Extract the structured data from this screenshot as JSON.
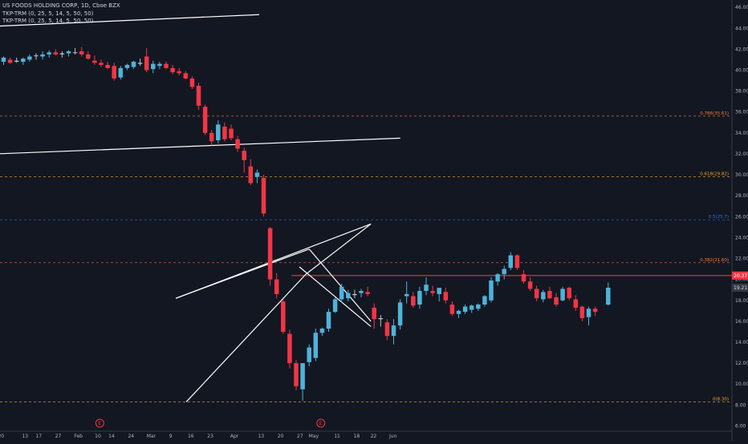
{
  "header": {
    "title": "US FOODS HOLDING CORP, 1D, Cboe BZX",
    "indicators": [
      "TKP-TRM (0, 25, 5, 14, 5, 50, 50)",
      "TKP-TRM (0, 25, 5, 14, 5, 50, 50)"
    ]
  },
  "colors": {
    "background": "#131722",
    "up": "#4fb3d9",
    "down": "#f23645",
    "neutral": "#c0c0c6",
    "trendline": "#ffffff",
    "resistance": "#f23645"
  },
  "chart_data": {
    "type": "candlestick",
    "ylim": [
      5.5,
      46.7
    ],
    "y_ticks": [
      6,
      8,
      10,
      12,
      14,
      16,
      18,
      20,
      22,
      24,
      26,
      28,
      30,
      32,
      34,
      36,
      38,
      40,
      42,
      44,
      46
    ],
    "x_labels": [
      {
        "label": "20",
        "bar": -0.4
      },
      {
        "label": "13",
        "bar": 3.3
      },
      {
        "label": "17",
        "bar": 5.4
      },
      {
        "label": "27",
        "bar": 8.4
      },
      {
        "label": "Feb",
        "bar": 11.5
      },
      {
        "label": "10",
        "bar": 14.5
      },
      {
        "label": "14",
        "bar": 16.6
      },
      {
        "label": "24",
        "bar": 19.6
      },
      {
        "label": "Mar",
        "bar": 22.7
      },
      {
        "label": "9",
        "bar": 25.7
      },
      {
        "label": "16",
        "bar": 28.8
      },
      {
        "label": "23",
        "bar": 31.8
      },
      {
        "label": "Apr",
        "bar": 35.5
      },
      {
        "label": "13",
        "bar": 39.6
      },
      {
        "label": "20",
        "bar": 42.6
      },
      {
        "label": "27",
        "bar": 45.6
      },
      {
        "label": "May",
        "bar": 47.7
      },
      {
        "label": "11",
        "bar": 51.3
      },
      {
        "label": "18",
        "bar": 54.3
      },
      {
        "label": "22",
        "bar": 56.9
      },
      {
        "label": "Jun",
        "bar": 59.9
      }
    ],
    "candles": [
      {
        "o": 40.8,
        "h": 41.3,
        "l": 40.5,
        "c": 41.2
      },
      {
        "o": 41.0,
        "h": 41.2,
        "l": 40.6,
        "c": 40.7
      },
      {
        "o": 40.9,
        "h": 41.2,
        "l": 40.7,
        "c": 40.8
      },
      {
        "o": 40.8,
        "h": 41.2,
        "l": 40.5,
        "c": 41.1
      },
      {
        "o": 41.0,
        "h": 41.5,
        "l": 40.8,
        "c": 41.3
      },
      {
        "o": 41.4,
        "h": 41.6,
        "l": 41.0,
        "c": 41.4
      },
      {
        "o": 41.3,
        "h": 41.8,
        "l": 41.0,
        "c": 41.5
      },
      {
        "o": 41.5,
        "h": 41.9,
        "l": 41.2,
        "c": 41.7
      },
      {
        "o": 41.7,
        "h": 42.0,
        "l": 41.4,
        "c": 41.5
      },
      {
        "o": 41.5,
        "h": 41.8,
        "l": 41.2,
        "c": 41.6
      },
      {
        "o": 41.6,
        "h": 41.9,
        "l": 41.3,
        "c": 41.8
      },
      {
        "o": 41.7,
        "h": 42.1,
        "l": 41.5,
        "c": 41.7
      },
      {
        "o": 41.8,
        "h": 42.2,
        "l": 41.3,
        "c": 41.5
      },
      {
        "o": 41.5,
        "h": 41.8,
        "l": 41.0,
        "c": 41.1
      },
      {
        "o": 40.9,
        "h": 41.4,
        "l": 40.5,
        "c": 40.7
      },
      {
        "o": 40.7,
        "h": 41.0,
        "l": 40.3,
        "c": 40.5
      },
      {
        "o": 40.5,
        "h": 40.8,
        "l": 40.1,
        "c": 40.2
      },
      {
        "o": 40.4,
        "h": 40.7,
        "l": 39.0,
        "c": 39.2
      },
      {
        "o": 39.3,
        "h": 40.4,
        "l": 39.1,
        "c": 40.2
      },
      {
        "o": 40.2,
        "h": 40.6,
        "l": 40.0,
        "c": 40.5
      },
      {
        "o": 40.3,
        "h": 40.9,
        "l": 40.1,
        "c": 40.8
      },
      {
        "o": 40.6,
        "h": 41.1,
        "l": 40.4,
        "c": 40.7
      },
      {
        "o": 41.3,
        "h": 42.1,
        "l": 39.8,
        "c": 40.0
      },
      {
        "o": 40.1,
        "h": 40.9,
        "l": 39.7,
        "c": 40.6
      },
      {
        "o": 40.4,
        "h": 40.8,
        "l": 40.1,
        "c": 40.6
      },
      {
        "o": 40.6,
        "h": 40.8,
        "l": 40.1,
        "c": 40.2
      },
      {
        "o": 40.2,
        "h": 40.5,
        "l": 39.6,
        "c": 39.8
      },
      {
        "o": 39.9,
        "h": 40.2,
        "l": 39.5,
        "c": 39.7
      },
      {
        "o": 39.7,
        "h": 39.9,
        "l": 39.1,
        "c": 39.2
      },
      {
        "o": 39.2,
        "h": 39.4,
        "l": 38.2,
        "c": 38.4
      },
      {
        "o": 38.5,
        "h": 38.8,
        "l": 36.2,
        "c": 36.6
      },
      {
        "o": 36.5,
        "h": 36.7,
        "l": 33.8,
        "c": 34.0
      },
      {
        "o": 34.0,
        "h": 34.3,
        "l": 32.8,
        "c": 33.2
      },
      {
        "o": 33.3,
        "h": 35.2,
        "l": 33.0,
        "c": 34.8
      },
      {
        "o": 34.6,
        "h": 35.0,
        "l": 33.2,
        "c": 33.4
      },
      {
        "o": 34.4,
        "h": 34.8,
        "l": 33.3,
        "c": 33.5
      },
      {
        "o": 33.4,
        "h": 33.7,
        "l": 32.2,
        "c": 32.5
      },
      {
        "o": 32.3,
        "h": 32.6,
        "l": 30.2,
        "c": 31.4
      },
      {
        "o": 30.8,
        "h": 31.5,
        "l": 29.0,
        "c": 29.2
      },
      {
        "o": 29.8,
        "h": 30.5,
        "l": 29.2,
        "c": 30.2
      },
      {
        "o": 29.7,
        "h": 30.0,
        "l": 26.0,
        "c": 26.3
      },
      {
        "o": 24.9,
        "h": 25.0,
        "l": 19.4,
        "c": 20.0
      },
      {
        "o": 20.0,
        "h": 20.6,
        "l": 18.2,
        "c": 18.6
      },
      {
        "o": 17.9,
        "h": 18.1,
        "l": 14.8,
        "c": 15.0
      },
      {
        "o": 14.8,
        "h": 15.2,
        "l": 11.5,
        "c": 12.0
      },
      {
        "o": 12.0,
        "h": 12.3,
        "l": 9.4,
        "c": 9.8
      },
      {
        "o": 9.5,
        "h": 12.0,
        "l": 8.4,
        "c": 12.0
      },
      {
        "o": 12.1,
        "h": 13.8,
        "l": 11.7,
        "c": 13.5
      },
      {
        "o": 12.5,
        "h": 15.3,
        "l": 12.2,
        "c": 14.9
      },
      {
        "o": 14.9,
        "h": 15.4,
        "l": 14.6,
        "c": 15.3
      },
      {
        "o": 15.3,
        "h": 17.2,
        "l": 15.0,
        "c": 16.9
      },
      {
        "o": 16.9,
        "h": 18.3,
        "l": 16.8,
        "c": 18.1
      },
      {
        "o": 18.1,
        "h": 19.6,
        "l": 17.8,
        "c": 19.3
      },
      {
        "o": 18.2,
        "h": 19.0,
        "l": 17.9,
        "c": 18.7
      },
      {
        "o": 18.6,
        "h": 19.0,
        "l": 18.2,
        "c": 18.5
      },
      {
        "o": 18.7,
        "h": 19.1,
        "l": 18.3,
        "c": 18.9
      },
      {
        "o": 18.8,
        "h": 19.3,
        "l": 18.4,
        "c": 18.6
      },
      {
        "o": 17.3,
        "h": 17.7,
        "l": 15.3,
        "c": 16.2
      },
      {
        "o": 16.2,
        "h": 16.6,
        "l": 15.5,
        "c": 16.3
      },
      {
        "o": 15.9,
        "h": 16.2,
        "l": 14.2,
        "c": 14.6
      },
      {
        "o": 14.6,
        "h": 16.2,
        "l": 13.8,
        "c": 15.6
      },
      {
        "o": 15.6,
        "h": 18.1,
        "l": 15.2,
        "c": 17.8
      },
      {
        "o": 18.4,
        "h": 19.8,
        "l": 17.7,
        "c": 18.6
      },
      {
        "o": 18.4,
        "h": 18.8,
        "l": 17.3,
        "c": 17.5
      },
      {
        "o": 17.6,
        "h": 19.3,
        "l": 17.2,
        "c": 18.9
      },
      {
        "o": 18.9,
        "h": 20.2,
        "l": 18.5,
        "c": 19.5
      },
      {
        "o": 18.9,
        "h": 19.4,
        "l": 18.4,
        "c": 18.7
      },
      {
        "o": 18.6,
        "h": 19.0,
        "l": 17.9,
        "c": 19.2
      },
      {
        "o": 18.8,
        "h": 19.2,
        "l": 17.7,
        "c": 18.0
      },
      {
        "o": 17.6,
        "h": 17.9,
        "l": 16.5,
        "c": 16.7
      },
      {
        "o": 16.7,
        "h": 17.1,
        "l": 16.3,
        "c": 17.0
      },
      {
        "o": 16.9,
        "h": 17.6,
        "l": 16.7,
        "c": 17.4
      },
      {
        "o": 17.1,
        "h": 17.6,
        "l": 16.8,
        "c": 17.5
      },
      {
        "o": 17.2,
        "h": 17.7,
        "l": 17.0,
        "c": 17.6
      },
      {
        "o": 17.6,
        "h": 18.5,
        "l": 17.4,
        "c": 18.4
      },
      {
        "o": 18.0,
        "h": 20.2,
        "l": 17.8,
        "c": 19.9
      },
      {
        "o": 19.8,
        "h": 20.6,
        "l": 19.4,
        "c": 20.5
      },
      {
        "o": 20.5,
        "h": 21.3,
        "l": 20.0,
        "c": 21.0
      },
      {
        "o": 21.1,
        "h": 22.6,
        "l": 20.9,
        "c": 22.3
      },
      {
        "o": 22.3,
        "h": 22.4,
        "l": 20.9,
        "c": 21.1
      },
      {
        "o": 20.5,
        "h": 20.9,
        "l": 19.6,
        "c": 19.8
      },
      {
        "o": 19.8,
        "h": 20.2,
        "l": 18.9,
        "c": 19.1
      },
      {
        "o": 19.1,
        "h": 19.4,
        "l": 17.9,
        "c": 18.2
      },
      {
        "o": 18.1,
        "h": 19.0,
        "l": 17.8,
        "c": 18.8
      },
      {
        "o": 18.9,
        "h": 19.3,
        "l": 18.1,
        "c": 18.2
      },
      {
        "o": 18.3,
        "h": 18.7,
        "l": 17.4,
        "c": 17.6
      },
      {
        "o": 18.0,
        "h": 19.3,
        "l": 17.9,
        "c": 19.1
      },
      {
        "o": 19.2,
        "h": 19.3,
        "l": 18.0,
        "c": 18.2
      },
      {
        "o": 18.1,
        "h": 18.5,
        "l": 17.0,
        "c": 17.3
      },
      {
        "o": 17.4,
        "h": 17.5,
        "l": 16.0,
        "c": 16.3
      },
      {
        "o": 16.4,
        "h": 17.4,
        "l": 15.6,
        "c": 17.2
      },
      {
        "o": 17.2,
        "h": 17.4,
        "l": 16.5,
        "c": 16.9
      },
      null,
      {
        "o": 17.6,
        "h": 19.7,
        "l": 17.5,
        "c": 19.21
      }
    ],
    "fib_levels": [
      {
        "label": "0.786(35.61)",
        "value": 35.61,
        "color": "#f57c3a"
      },
      {
        "label": "0.618(29.82)",
        "value": 29.82,
        "color": "#f5a623"
      },
      {
        "label": "0.5(25.7)",
        "value": 25.7,
        "color": "#2a6ff0"
      },
      {
        "label": "0.382(21.60)",
        "value": 21.6,
        "color": "#f57c3a"
      },
      {
        "label": "0(8.30)",
        "value": 8.3,
        "color": "#f5a623"
      }
    ],
    "trendlines": [
      {
        "x1": -1,
        "y1": 44.2,
        "x2": 39.3,
        "y2": 45.3
      },
      {
        "x1": -1,
        "y1": 32.0,
        "x2": 61,
        "y2": 33.5
      },
      {
        "x1": 26.5,
        "y1": 18.2,
        "x2": 47.0,
        "y2": 22.9
      },
      {
        "x1": 26.5,
        "y1": 18.2,
        "x2": 56.5,
        "y2": 25.3
      },
      {
        "x1": 28.1,
        "y1": 8.3,
        "x2": 46.5,
        "y2": 20.5
      },
      {
        "x1": 46.5,
        "y1": 20.5,
        "x2": 56.5,
        "y2": 25.3
      },
      {
        "x1": 47.0,
        "y1": 22.9,
        "x2": 56.5,
        "y2": 16.0
      },
      {
        "x1": 45.5,
        "y1": 21.2,
        "x2": 56.5,
        "y2": 15.5
      }
    ],
    "resistance": {
      "value": 20.37,
      "x_start": 44.3
    },
    "price_labels": [
      {
        "label": "20.37",
        "value": 20.37,
        "bg": "#f23645",
        "fg": "#ffffff"
      },
      {
        "label": "19.21",
        "value": 19.21,
        "bg": "#363a45",
        "fg": "#d1d4dc"
      }
    ],
    "events": [
      {
        "label": "E",
        "bar": 14.8
      },
      {
        "label": "E",
        "bar": 48.8
      }
    ]
  }
}
